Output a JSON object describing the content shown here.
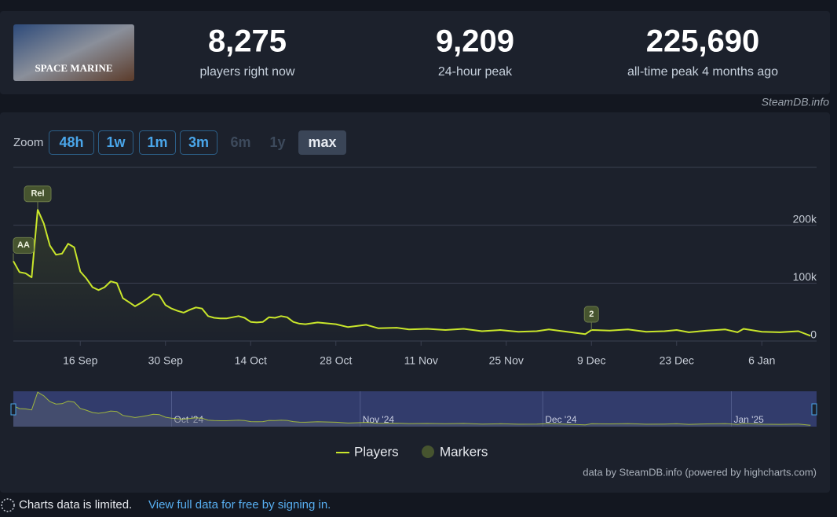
{
  "header": {
    "game_image_label": "SPACE MARINE",
    "stats": [
      {
        "value": "8,275",
        "label": "players right now"
      },
      {
        "value": "9,209",
        "label": "24-hour peak"
      },
      {
        "value": "225,690",
        "label": "all-time peak 4 months ago"
      }
    ],
    "source": "SteamDB.info"
  },
  "zoom": {
    "label": "Zoom",
    "buttons": [
      "48h",
      "1w",
      "1m",
      "3m",
      "6m",
      "1y",
      "max"
    ],
    "disabled": [
      "6m",
      "1y"
    ],
    "active": "max"
  },
  "chart": {
    "type": "line",
    "x": [
      "2024-09-05",
      "2024-09-06",
      "2024-09-07",
      "2024-09-08",
      "2024-09-09",
      "2024-09-10",
      "2024-09-11",
      "2024-09-12",
      "2024-09-13",
      "2024-09-14",
      "2024-09-15",
      "2024-09-16",
      "2024-09-17",
      "2024-09-18",
      "2024-09-19",
      "2024-09-20",
      "2024-09-21",
      "2024-09-22",
      "2024-09-23",
      "2024-09-24",
      "2024-09-25",
      "2024-09-26",
      "2024-09-27",
      "2024-09-28",
      "2024-09-29",
      "2024-09-30",
      "2024-10-01",
      "2024-10-02",
      "2024-10-03",
      "2024-10-04",
      "2024-10-05",
      "2024-10-06",
      "2024-10-07",
      "2024-10-08",
      "2024-10-09",
      "2024-10-10",
      "2024-10-11",
      "2024-10-12",
      "2024-10-13",
      "2024-10-14",
      "2024-10-15",
      "2024-10-16",
      "2024-10-17",
      "2024-10-18",
      "2024-10-19",
      "2024-10-20",
      "2024-10-21",
      "2024-10-22",
      "2024-10-23",
      "2024-10-25",
      "2024-10-28",
      "2024-10-30",
      "2024-11-02",
      "2024-11-04",
      "2024-11-07",
      "2024-11-09",
      "2024-11-12",
      "2024-11-15",
      "2024-11-18",
      "2024-11-21",
      "2024-11-24",
      "2024-11-27",
      "2024-11-30",
      "2024-12-02",
      "2024-12-05",
      "2024-12-08",
      "2024-12-09",
      "2024-12-12",
      "2024-12-15",
      "2024-12-18",
      "2024-12-21",
      "2024-12-23",
      "2024-12-25",
      "2024-12-28",
      "2024-12-31",
      "2025-01-02",
      "2025-01-03",
      "2025-01-06",
      "2025-01-09",
      "2025-01-12",
      "2025-01-14"
    ],
    "series": [
      {
        "name": "Players",
        "color": "#c9e62b",
        "values": [
          138000,
          119000,
          117000,
          110000,
          227000,
          203000,
          165000,
          149000,
          151000,
          168000,
          162000,
          120000,
          108000,
          93000,
          88000,
          93000,
          103000,
          100000,
          74000,
          67000,
          60000,
          66000,
          73000,
          81000,
          79000,
          62000,
          56000,
          52000,
          49000,
          54000,
          58000,
          56000,
          43000,
          40000,
          39000,
          39000,
          41000,
          43000,
          40000,
          33000,
          32000,
          33000,
          41000,
          40000,
          43000,
          41000,
          33000,
          30000,
          29000,
          32000,
          29000,
          24000,
          28000,
          22000,
          23000,
          20000,
          21000,
          19000,
          21000,
          17000,
          19000,
          16000,
          17000,
          20000,
          16000,
          12000,
          19000,
          18000,
          20000,
          16000,
          17000,
          19000,
          15000,
          18000,
          20000,
          15000,
          21000,
          16000,
          15000,
          17000,
          9000
        ]
      }
    ],
    "xlim": [
      "2024-09-05",
      "2025-01-15"
    ],
    "xticks": [
      {
        "value": "2024-09-16",
        "label": "16 Sep"
      },
      {
        "value": "2024-09-30",
        "label": "30 Sep"
      },
      {
        "value": "2024-10-14",
        "label": "14 Oct"
      },
      {
        "value": "2024-10-28",
        "label": "28 Oct"
      },
      {
        "value": "2024-11-11",
        "label": "11 Nov"
      },
      {
        "value": "2024-11-25",
        "label": "25 Nov"
      },
      {
        "value": "2024-12-09",
        "label": "9 Dec"
      },
      {
        "value": "2024-12-23",
        "label": "23 Dec"
      },
      {
        "value": "2025-01-06",
        "label": "6 Jan"
      }
    ],
    "ylim": [
      0,
      300000
    ],
    "yticks": [
      0,
      {
        "value": 100000,
        "label": "100k"
      },
      {
        "value": 200000,
        "label": "200k"
      }
    ],
    "grid": true,
    "markers": [
      {
        "label": "AA",
        "x": "2024-09-05"
      },
      {
        "label": "Rel",
        "x": "2024-09-09"
      },
      {
        "label": "2",
        "x": "2024-12-09"
      }
    ],
    "marker_legend": "Markers",
    "marker_color": "#46542f",
    "navigator": {
      "xticks": [
        {
          "value": "2024-10-01",
          "label": "Oct '24"
        },
        {
          "value": "2024-11-01",
          "label": "Nov '24"
        },
        {
          "value": "2024-12-01",
          "label": "Dec '24"
        },
        {
          "value": "2025-01-01",
          "label": "Jan '25"
        }
      ]
    },
    "credit": "data by SteamDB.info (powered by highcharts.com)"
  },
  "footer": {
    "notice": "Charts data is limited.",
    "link": "View full data for free by signing in."
  }
}
